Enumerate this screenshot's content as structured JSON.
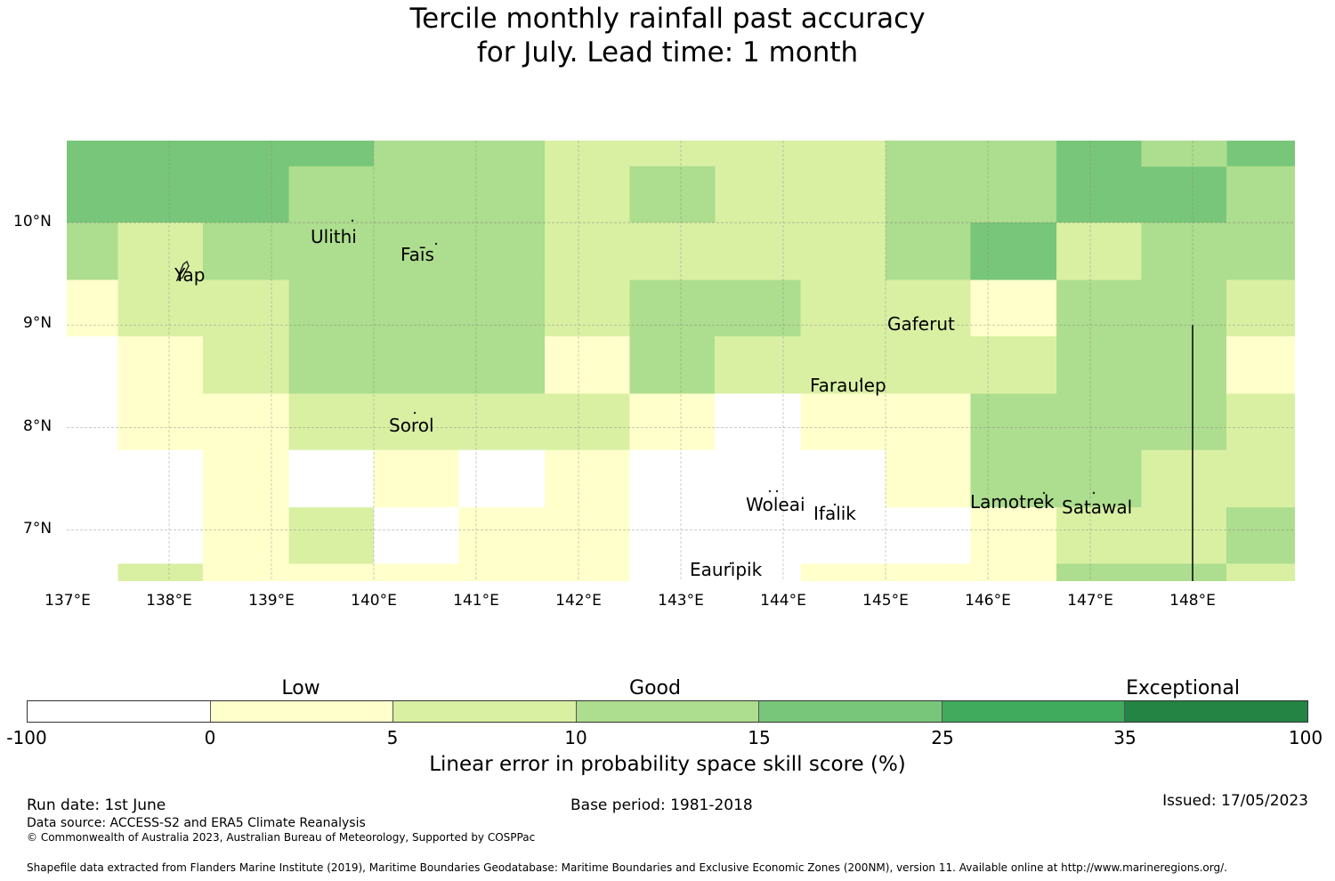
{
  "title_line1": "Tercile monthly rainfall past accuracy",
  "title_line2": "for July. Lead time: 1 month",
  "map": {
    "lon_range": [
      137,
      149
    ],
    "lat_range": [
      6.5,
      10.8
    ],
    "lat_ticks": [
      "10°N",
      "9°N",
      "8°N",
      "7°N"
    ],
    "lon_ticks": [
      "137°E",
      "138°E",
      "139°E",
      "140°E",
      "141°E",
      "142°E",
      "143°E",
      "144°E",
      "145°E",
      "146°E",
      "147°E",
      "148°E"
    ],
    "islands": [
      "Ulithi",
      "Yap",
      "Faīs",
      "Gaferut",
      "Faraulep",
      "Sorol",
      "Woleai",
      "Ifalik",
      "Lamotrek",
      "Satawal",
      "Eauripik"
    ],
    "category_colors": [
      "#ffffff",
      "#ffffcc",
      "#d9f0a3",
      "#addd8e",
      "#78c679",
      "#41ab5d",
      "#238443"
    ],
    "grid": [
      {
        "lat": [
          10.0,
          10.8
        ],
        "cells": [
          [
            137,
            140,
            4
          ],
          [
            140,
            141.67,
            3
          ],
          [
            141.67,
            145,
            2
          ],
          [
            145,
            146.67,
            3
          ],
          [
            146.67,
            148.33,
            4
          ],
          [
            148.33,
            149,
            4
          ]
        ]
      },
      {
        "lat": [
          10.0,
          10.55
        ],
        "cells": [
          [
            139.17,
            140,
            3
          ],
          [
            142.5,
            143.33,
            3
          ],
          [
            147.5,
            148.33,
            4
          ],
          [
            148.33,
            149,
            3
          ]
        ]
      },
      {
        "lat": [
          10.55,
          10.8
        ],
        "cells": [
          [
            147.5,
            148.33,
            3
          ]
        ]
      },
      {
        "lat": [
          9.44,
          10.0
        ],
        "cells": [
          [
            137,
            137.5,
            3
          ],
          [
            137.5,
            138.33,
            2
          ],
          [
            138.33,
            141.67,
            3
          ],
          [
            141.67,
            145,
            2
          ],
          [
            145,
            145.83,
            3
          ],
          [
            145.83,
            146.67,
            4
          ],
          [
            146.67,
            147.5,
            2
          ],
          [
            147.5,
            149,
            3
          ]
        ]
      },
      {
        "lat": [
          8.89,
          9.44
        ],
        "cells": [
          [
            137,
            137.5,
            1
          ],
          [
            137.5,
            139.17,
            2
          ],
          [
            139.17,
            141.67,
            3
          ],
          [
            141.67,
            142.5,
            2
          ],
          [
            142.5,
            144.17,
            3
          ],
          [
            144.17,
            145.83,
            2
          ],
          [
            145.83,
            146.67,
            1
          ],
          [
            146.67,
            148.33,
            3
          ],
          [
            148.33,
            149,
            2
          ]
        ]
      },
      {
        "lat": [
          8.33,
          8.89
        ],
        "cells": [
          [
            137,
            137.5,
            0
          ],
          [
            137.5,
            138.33,
            1
          ],
          [
            138.33,
            139.17,
            2
          ],
          [
            139.17,
            141.67,
            3
          ],
          [
            141.67,
            142.5,
            1
          ],
          [
            142.5,
            143.33,
            3
          ],
          [
            143.33,
            146.67,
            2
          ],
          [
            146.67,
            148.33,
            3
          ],
          [
            148.33,
            149,
            1
          ]
        ]
      },
      {
        "lat": [
          7.78,
          8.33
        ],
        "cells": [
          [
            137,
            137.5,
            0
          ],
          [
            137.5,
            139.17,
            1
          ],
          [
            139.17,
            142.5,
            2
          ],
          [
            142.5,
            143.33,
            1
          ],
          [
            143.33,
            144.17,
            0
          ],
          [
            144.17,
            145.83,
            1
          ],
          [
            145.83,
            148.33,
            3
          ],
          [
            148.33,
            149,
            2
          ]
        ]
      },
      {
        "lat": [
          7.22,
          7.78
        ],
        "cells": [
          [
            137,
            138.33,
            0
          ],
          [
            138.33,
            139.17,
            1
          ],
          [
            139.17,
            140,
            0
          ],
          [
            140,
            140.83,
            1
          ],
          [
            140.83,
            141.67,
            0
          ],
          [
            141.67,
            142.5,
            1
          ],
          [
            142.5,
            144.17,
            0
          ],
          [
            144.17,
            145,
            0
          ],
          [
            145,
            145.83,
            1
          ],
          [
            145.83,
            147.5,
            3
          ],
          [
            147.5,
            149,
            2
          ]
        ]
      },
      {
        "lat": [
          6.67,
          7.22
        ],
        "cells": [
          [
            137,
            138.33,
            0
          ],
          [
            138.33,
            139.17,
            1
          ],
          [
            139.17,
            140,
            2
          ],
          [
            140,
            140.83,
            0
          ],
          [
            140.83,
            142.5,
            1
          ],
          [
            142.5,
            145,
            0
          ],
          [
            145,
            145.83,
            0
          ],
          [
            145.83,
            146.67,
            1
          ],
          [
            146.67,
            148.33,
            2
          ],
          [
            148.33,
            149,
            3
          ]
        ]
      },
      {
        "lat": [
          6.5,
          6.67
        ],
        "cells": [
          [
            137,
            137.5,
            0
          ],
          [
            137.5,
            138.33,
            2
          ],
          [
            138.33,
            142.5,
            1
          ],
          [
            142.5,
            144.17,
            0
          ],
          [
            144.17,
            146.67,
            1
          ],
          [
            146.67,
            148.33,
            3
          ],
          [
            148.33,
            149,
            2
          ]
        ]
      }
    ]
  },
  "legend": {
    "categories": [
      "Low",
      "Good",
      "Exceptional"
    ],
    "ticks": [
      "-100",
      "0",
      "5",
      "10",
      "15",
      "25",
      "35",
      "100"
    ],
    "colors": [
      "#ffffff",
      "#ffffcc",
      "#d9f0a3",
      "#addd8e",
      "#78c679",
      "#41ab5d",
      "#238443"
    ],
    "label": "Linear error in probability space skill score (%)"
  },
  "footer": {
    "run_date": "Run date: 1st June",
    "base_period": "Base period: 1981-2018",
    "issued": "Issued: 17/05/2023",
    "data_source": "Data source: ACCESS-S2 and ERA5 Climate Reanalysis",
    "copyright": "© Commonwealth of Australia 2023, Australian Bureau of Meteorology, Supported by COSPPac",
    "shapefile": "Shapefile data extracted from Flanders Marine Institute (2019), Maritime Boundaries Geodatabase: Maritime Boundaries and Exclusive Economic Zones (200NM), version 11. Available online at http://www.marineregions.org/."
  }
}
